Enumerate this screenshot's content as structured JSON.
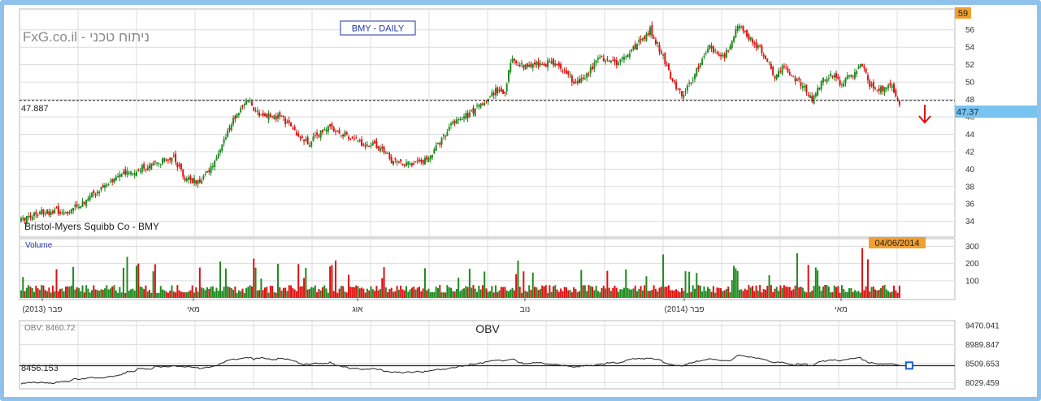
{
  "watermark": "FxG.co.il - ניתוח טכני",
  "ticker_box": "BMY - DAILY",
  "instrument": "Bristol-Myers Squibb Co - BMY",
  "top_right_badge": "59",
  "last_price_badge": "47.37",
  "reference_line_label": "47.887",
  "volume_label": "Volume",
  "volume_date_badge": "04/06/2014",
  "obv_label": "OBV: 8460.72",
  "obv_title": "OBV",
  "obv_reference_label": "8456.153",
  "colors": {
    "up": "#1e8a1e",
    "down": "#dd1111",
    "accent": "#3a8fd6",
    "badge": "#f0a030",
    "frame": "#8fc1ea"
  },
  "chart_data": [
    {
      "type": "candlestick",
      "title": "BMY - DAILY",
      "y_ticks": [
        34,
        36,
        38,
        40,
        42,
        44,
        46,
        48,
        50,
        52,
        54,
        56
      ],
      "ylim": [
        32.2,
        58.4
      ],
      "reference_value": 47.887,
      "last_value": 47.37,
      "x_ticks": [
        "פבר (2013)",
        "מאי",
        "אוג",
        "נוב",
        "פבר (2014)",
        "מאי"
      ],
      "close_anchors": [
        [
          0,
          34.0
        ],
        [
          8,
          35.0
        ],
        [
          25,
          35.2
        ],
        [
          35,
          36.5
        ],
        [
          55,
          39.5
        ],
        [
          70,
          40.5
        ],
        [
          82,
          41.3
        ],
        [
          88,
          39.0
        ],
        [
          95,
          38.6
        ],
        [
          102,
          40.0
        ],
        [
          110,
          44.0
        ],
        [
          116,
          46.5
        ],
        [
          122,
          47.8
        ],
        [
          128,
          46.3
        ],
        [
          140,
          45.8
        ],
        [
          148,
          44.2
        ],
        [
          155,
          43.0
        ],
        [
          165,
          45.0
        ],
        [
          175,
          43.8
        ],
        [
          182,
          43.0
        ],
        [
          192,
          42.6
        ],
        [
          200,
          40.8
        ],
        [
          210,
          40.5
        ],
        [
          218,
          41.0
        ],
        [
          225,
          43.0
        ],
        [
          232,
          45.5
        ],
        [
          240,
          46.2
        ],
        [
          248,
          47.5
        ],
        [
          255,
          49.0
        ],
        [
          260,
          48.5
        ],
        [
          262,
          51.0
        ],
        [
          264,
          52.8
        ],
        [
          270,
          51.8
        ],
        [
          285,
          52.2
        ],
        [
          298,
          50.0
        ],
        [
          305,
          51.0
        ],
        [
          310,
          53.0
        ],
        [
          320,
          52.2
        ],
        [
          330,
          54.0
        ],
        [
          338,
          56.0
        ],
        [
          345,
          53.0
        ],
        [
          350,
          50.0
        ],
        [
          356,
          48.5
        ],
        [
          362,
          51.0
        ],
        [
          370,
          54.0
        ],
        [
          378,
          53.0
        ],
        [
          385,
          56.5
        ],
        [
          392,
          55.0
        ],
        [
          400,
          53.0
        ],
        [
          405,
          50.5
        ],
        [
          410,
          51.8
        ],
        [
          420,
          49.5
        ],
        [
          425,
          48.0
        ],
        [
          430,
          50.0
        ],
        [
          435,
          51.0
        ],
        [
          440,
          49.8
        ],
        [
          448,
          51.0
        ],
        [
          452,
          52.2
        ],
        [
          456,
          49.5
        ],
        [
          465,
          49.2
        ],
        [
          468,
          49.7
        ],
        [
          472,
          47.6
        ]
      ]
    },
    {
      "type": "bar",
      "name": "Volume",
      "y_ticks": [
        100,
        200,
        300
      ],
      "ylim": [
        0,
        345
      ]
    },
    {
      "type": "line",
      "name": "OBV",
      "y_ticks": [
        "9470.041",
        "8989.847",
        "8509.653",
        "8029.459"
      ],
      "ylim": [
        7875,
        9590
      ],
      "reference_value": 8456.153,
      "last_value": 8460.72
    }
  ]
}
